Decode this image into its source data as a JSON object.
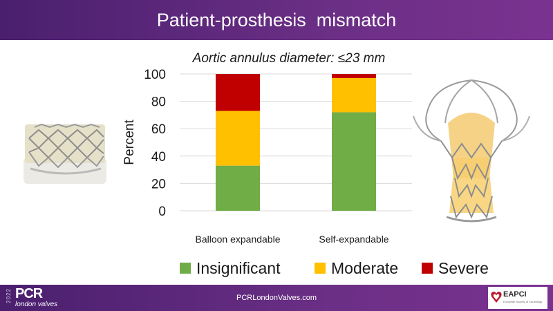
{
  "header": {
    "title": "Patient-prosthesis  mismatch"
  },
  "footer": {
    "url": "PCRLondonValves.com",
    "logo_year": "2022",
    "logo_main": "PCR",
    "logo_sub": "london valves",
    "partner": "EAPCI",
    "partner_sub": "European Society of Cardiology"
  },
  "chart_data": {
    "type": "bar",
    "stacked": true,
    "title": "Aortic annulus diameter: ≤23 mm",
    "ylabel": "Percent",
    "xlabel": "",
    "ylim": [
      0,
      100
    ],
    "yticks": [
      0,
      20,
      40,
      60,
      80,
      100
    ],
    "grid": true,
    "legend_position": "bottom",
    "categories": [
      "Balloon expandable",
      "Self-expandable"
    ],
    "series": [
      {
        "name": "Insignificant",
        "color": "#70ad47",
        "values": [
          33,
          72
        ]
      },
      {
        "name": "Moderate",
        "color": "#ffc000",
        "values": [
          40,
          25
        ]
      },
      {
        "name": "Severe",
        "color": "#c00000",
        "values": [
          27,
          3
        ]
      }
    ]
  }
}
